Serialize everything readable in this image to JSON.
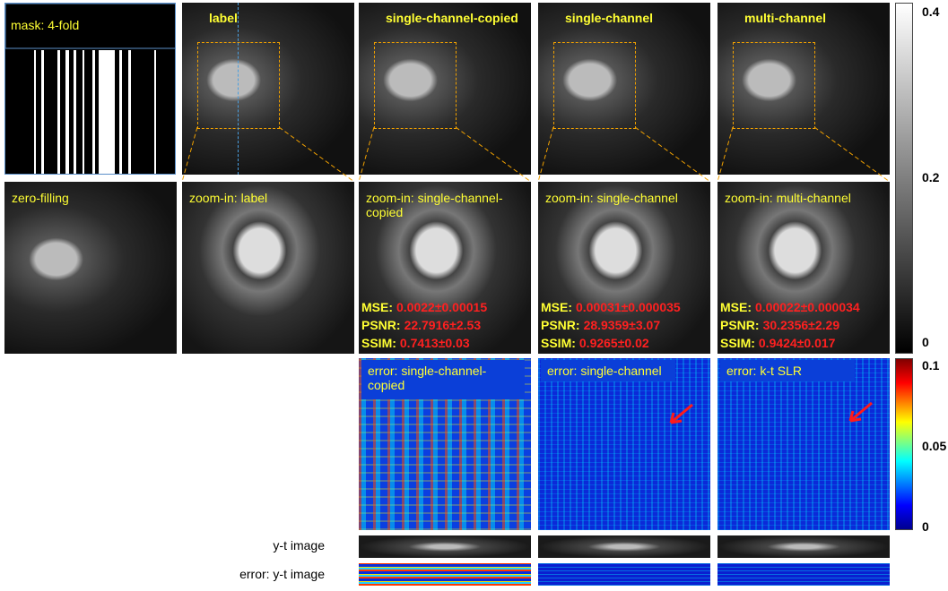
{
  "top_row": [
    "mask:  4-fold",
    "label",
    "single-channel-copied",
    "single-channel",
    "multi-channel"
  ],
  "zoom_row": [
    "zero-filling",
    "zoom-in: label",
    "zoom-in: single-channel-copied",
    "zoom-in: single-channel",
    "zoom-in: multi-channel"
  ],
  "metrics": [
    [
      {
        "name": "MSE:",
        "value": "0.0022±0.00015"
      },
      {
        "name": "PSNR:",
        "value": "22.7916±2.53"
      },
      {
        "name": "SSIM:",
        "value": "0.7413±0.03"
      }
    ],
    [
      {
        "name": "MSE:",
        "value": "0.00031±0.000035"
      },
      {
        "name": "PSNR:",
        "value": "28.9359±3.07"
      },
      {
        "name": "SSIM:",
        "value": "0.9265±0.02"
      }
    ],
    [
      {
        "name": "MSE:",
        "value": "0.00022±0.000034"
      },
      {
        "name": "PSNR:",
        "value": "30.2356±2.29"
      },
      {
        "name": "SSIM:",
        "value": "0.9424±0.017"
      }
    ]
  ],
  "error_row": [
    "error: single-channel-copied",
    "error: single-channel",
    "error: k-t SLR"
  ],
  "row_labels": [
    "y-t image",
    "error: y-t image"
  ],
  "colorbars": [
    {
      "ticks": [
        0.4,
        0.2,
        0
      ]
    },
    {
      "ticks": [
        0.1,
        0.05,
        0
      ]
    }
  ]
}
